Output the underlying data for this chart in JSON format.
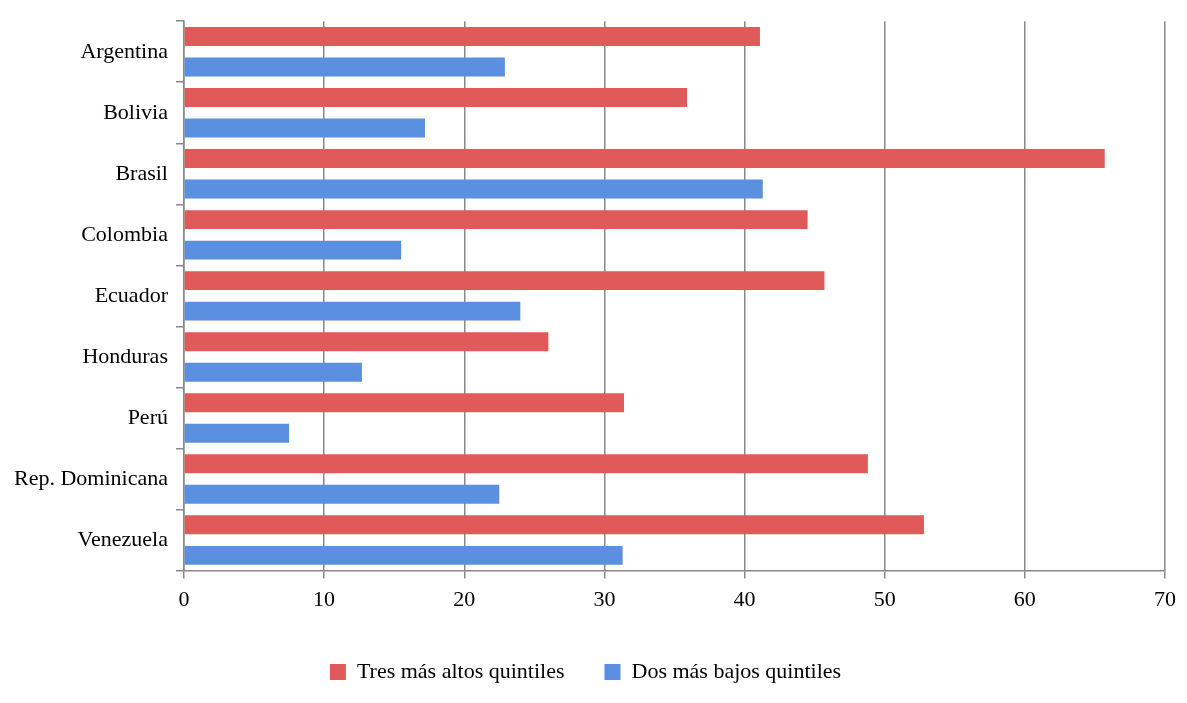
{
  "chart_data": {
    "type": "bar",
    "orientation": "horizontal",
    "categories": [
      "Argentina",
      "Bolivia",
      "Brasil",
      "Colombia",
      "Ecuador",
      "Honduras",
      "Perú",
      "Rep. Dominicana",
      "Venezuela"
    ],
    "series": [
      {
        "name": "Tres más altos quintiles",
        "color": "#e05a5a",
        "values": [
          41.1,
          35.9,
          65.7,
          44.5,
          45.7,
          26.0,
          31.4,
          48.8,
          52.8
        ]
      },
      {
        "name": "Dos más bajos quintiles",
        "color": "#5b8fe0",
        "values": [
          22.9,
          17.2,
          41.3,
          15.5,
          24.0,
          12.7,
          7.5,
          22.5,
          31.3
        ]
      }
    ],
    "xlim": [
      0,
      70
    ],
    "xticks": [
      0,
      10,
      20,
      30,
      40,
      50,
      60,
      70
    ],
    "grid": "x",
    "legend": "bottom"
  }
}
